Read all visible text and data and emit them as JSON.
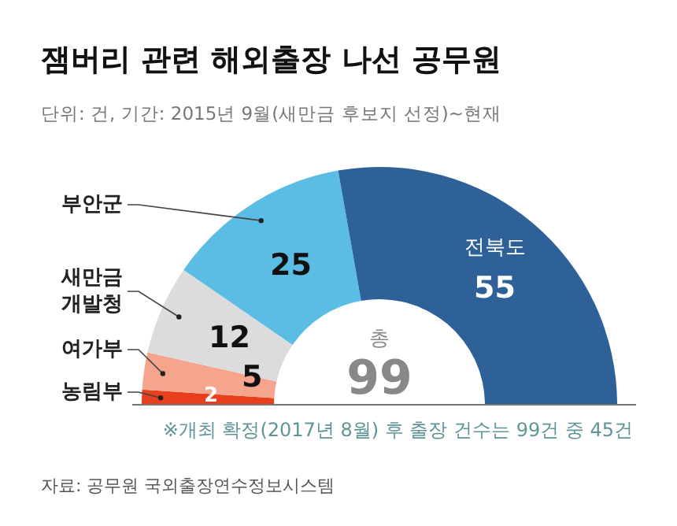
{
  "chart_data": {
    "type": "donut",
    "title": "잼버리 관련 해외출장 나선 공무원",
    "subtitle": "단위: 건, 기간: 2015년 9월(새만금 후보지 선정)~현재",
    "categories": [
      "농림부",
      "여가부",
      "새만금개발청",
      "부안군",
      "전북도"
    ],
    "values": [
      2,
      5,
      12,
      25,
      55
    ],
    "colors": [
      "#e8401c",
      "#f5a48e",
      "#dcdcdc",
      "#5bbde3",
      "#2f6199"
    ],
    "data_labels": true,
    "annotations": [
      "총",
      "99",
      "※개최 확정(2017년 8월) 후 출장 건수는 99건 중 45건",
      "자료: 공무원 국외출장연수정보시스템"
    ]
  }
}
